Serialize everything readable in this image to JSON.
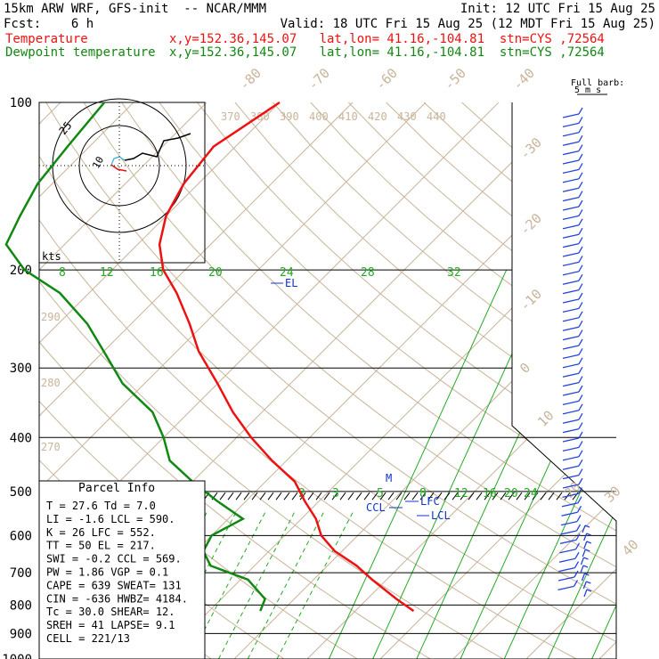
{
  "header": {
    "model": "15km ARW WRF, GFS-init  -- NCAR/MMM",
    "init": "Init: 12 UTC Fri 15 Aug 25",
    "fcst": "Fcst:    6 h",
    "valid": "Valid: 18 UTC Fri 15 Aug 25 (12 MDT Fri 15 Aug 25)",
    "temp_label": "Temperature",
    "temp_info": "x,y=152.36,145.07   lat,lon= 41.16,-104.81  stn=CYS ,72564",
    "dew_label": "Dewpoint temperature",
    "dew_info": "x,y=152.36,145.07   lat,lon= 41.16,-104.81  stn=CYS ,72564"
  },
  "barb_legend": {
    "line1": "Full barb:",
    "line2": "5 m s"
  },
  "hodograph": {
    "ring_label": "25",
    "inner_label": "10",
    "units": "kts"
  },
  "parcel_info": {
    "title": "Parcel Info",
    "rows": [
      "T  =   27.6  Td =    7.0",
      "LI =   -1.6  LCL =  590.",
      "K  =     26  LFC =  552.",
      "TT =     50  EL  =  217.",
      "SWI =  -0.2  CCL =  569.",
      "PW =   1.86  VGP =    0.1",
      "CAPE =  639  SWEAT=  131",
      "CIN = -636  HWBZ= 4184.",
      "Tc =   30.0  SHEAR=  12.",
      "SREH =   41  LAPSE=   9.1",
      "CELL = 221/13"
    ]
  },
  "levels": {
    "EL": "EL",
    "LFC": "LFC",
    "CCL": "CCL",
    "LCL": "LCL",
    "M": "M"
  },
  "colors": {
    "temperature": "#ee1111",
    "dewpoint": "#118811",
    "isotherm": "#c9b49a",
    "mixing_ratio": "#22aa22",
    "markers": "#1133cc",
    "barbs": "#2244dd"
  },
  "chart_data": {
    "type": "line",
    "title": "",
    "xlabel": "",
    "ylabel": "",
    "y_scale": "log-pressure",
    "ylim": [
      1000,
      100
    ],
    "pressure_levels": [
      100,
      200,
      300,
      400,
      500,
      600,
      700,
      800,
      900,
      1000
    ],
    "isotherm_labels": [
      "-80",
      "-70",
      "-60",
      "-50",
      "-40",
      "-30",
      "-20",
      "-10",
      "0",
      "10",
      "20",
      "30",
      "40"
    ],
    "theta_labels_top": [
      "370",
      "380",
      "390",
      "400",
      "410",
      "420",
      "430",
      "440"
    ],
    "theta_labels_left": [
      "290",
      "280",
      "270"
    ],
    "mixing_ratio_labels_upper": [
      "8",
      "12",
      "16",
      "20",
      "24",
      "28",
      "32"
    ],
    "mixing_ratio_labels_lower": [
      "2",
      "3",
      "5",
      "8",
      "12",
      "16",
      "20",
      "24"
    ],
    "series": [
      {
        "name": "Temperature",
        "pressure": [
          820,
          780,
          720,
          680,
          640,
          600,
          560,
          520,
          480,
          440,
          400,
          360,
          320,
          280,
          250,
          220,
          200,
          180,
          160,
          140,
          120,
          100
        ],
        "temperature": [
          28,
          24,
          18,
          14,
          9,
          5,
          2,
          -2,
          -6,
          -12,
          -18,
          -24,
          -30,
          -37,
          -42,
          -48,
          -53,
          -57,
          -60,
          -62,
          -63,
          -60
        ]
      },
      {
        "name": "Dewpoint temperature",
        "pressure": [
          820,
          780,
          720,
          680,
          640,
          600,
          560,
          520,
          480,
          440,
          400,
          360,
          320,
          280,
          250,
          220,
          200,
          180,
          160,
          140,
          120,
          100
        ],
        "temperature": [
          7,
          6,
          1,
          -6,
          -9,
          -10,
          -8,
          -14,
          -20,
          -26,
          -30,
          -35,
          -43,
          -50,
          -56,
          -64,
          -72,
          -78,
          -80,
          -82,
          -83,
          -84
        ]
      }
    ]
  }
}
